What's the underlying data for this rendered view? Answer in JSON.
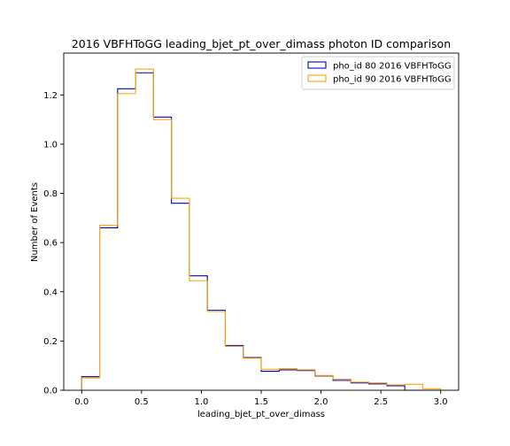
{
  "chart_data": {
    "type": "step-histogram",
    "title": "2016 VBFHToGG leading_bjet_pt_over_dimass photon ID comparison",
    "xlabel": "leading_bjet_pt_over_dimass",
    "ylabel": "Number of Events",
    "xlim": [
      -0.15,
      3.15
    ],
    "ylim": [
      0,
      1.37
    ],
    "xticks": [
      0.0,
      0.5,
      1.0,
      1.5,
      2.0,
      2.5,
      3.0
    ],
    "xtick_labels": [
      "0.0",
      "0.5",
      "1.0",
      "1.5",
      "2.0",
      "2.5",
      "3.0"
    ],
    "yticks": [
      0.0,
      0.2,
      0.4,
      0.6,
      0.8,
      1.0,
      1.2
    ],
    "ytick_labels": [
      "0.0",
      "0.2",
      "0.4",
      "0.6",
      "0.8",
      "1.0",
      "1.2"
    ],
    "bin_edges": [
      0.0,
      0.15,
      0.3,
      0.45,
      0.6,
      0.75,
      0.9,
      1.05,
      1.2,
      1.35,
      1.5,
      1.65,
      1.8,
      1.95,
      2.1,
      2.25,
      2.4,
      2.55,
      2.7,
      2.85,
      3.0
    ],
    "series": [
      {
        "name": "pho_id 80 2016 VBFHToGG",
        "color": "#0000cc",
        "values": [
          0.055,
          0.66,
          1.225,
          1.29,
          1.11,
          0.76,
          0.465,
          0.325,
          0.182,
          0.133,
          0.077,
          0.083,
          0.08,
          0.058,
          0.04,
          0.03,
          0.026,
          0.018,
          0.0,
          0.0
        ]
      },
      {
        "name": "pho_id 90 2016 VBFHToGG",
        "color": "#ffa500",
        "values": [
          0.05,
          0.67,
          1.205,
          1.305,
          1.1,
          0.78,
          0.445,
          0.32,
          0.178,
          0.13,
          0.085,
          0.088,
          0.083,
          0.06,
          0.045,
          0.033,
          0.03,
          0.022,
          0.024,
          0.006
        ]
      }
    ],
    "legend_position": "top-right",
    "grid": false
  }
}
